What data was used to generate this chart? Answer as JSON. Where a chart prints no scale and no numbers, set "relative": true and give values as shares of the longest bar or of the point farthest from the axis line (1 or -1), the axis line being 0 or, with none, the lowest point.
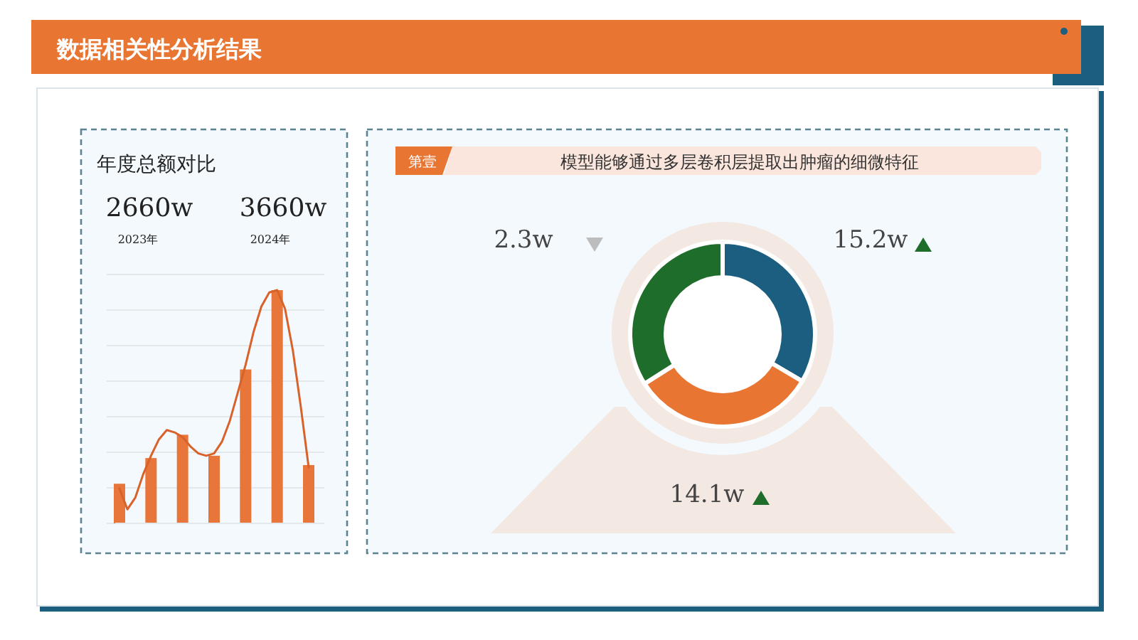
{
  "chart_data": [
    {
      "type": "bar",
      "title": "数据相关性分析结果",
      "subtitle": "年度总额对比",
      "categories": [
        null,
        null,
        null,
        null,
        null,
        null,
        null
      ],
      "relative": true,
      "grid": "y",
      "color": "#e8763a",
      "values": [
        0.17,
        0.28,
        0.38,
        0.29,
        0.66,
        1,
        0.25
      ],
      "annotations": [
        "2660w",
        "2023年",
        "3660w",
        "2024年"
      ]
    },
    {
      "type": "line",
      "categories": [
        null,
        null,
        null,
        null,
        null,
        null,
        null,
        null,
        null,
        null,
        null,
        null,
        null,
        null,
        null,
        null,
        null,
        null,
        null,
        null,
        null,
        null,
        null,
        null,
        null
      ],
      "relative": true,
      "color": "#d9622b",
      "values": [
        0.15,
        0.06,
        0.11,
        0.21,
        0.29,
        0.36,
        0.4,
        0.39,
        0.37,
        0.33,
        0.3,
        0.29,
        0.3,
        0.35,
        0.44,
        0.56,
        0.68,
        0.82,
        0.93,
        0.99,
        1,
        0.92,
        0.74,
        0.5,
        0.24
      ]
    },
    {
      "type": "donut",
      "title": "模型能够通过多层卷积层提取出肿瘤的细微特征",
      "categories": [
        null,
        null,
        null
      ],
      "values": [
        33.5,
        32.5,
        34
      ],
      "colors": [
        "#1b5e80",
        "#e87532",
        "#1f6d2b"
      ],
      "annotations": [
        "第壹",
        "15.2w",
        "14.1w",
        "2.3w"
      ]
    }
  ]
}
